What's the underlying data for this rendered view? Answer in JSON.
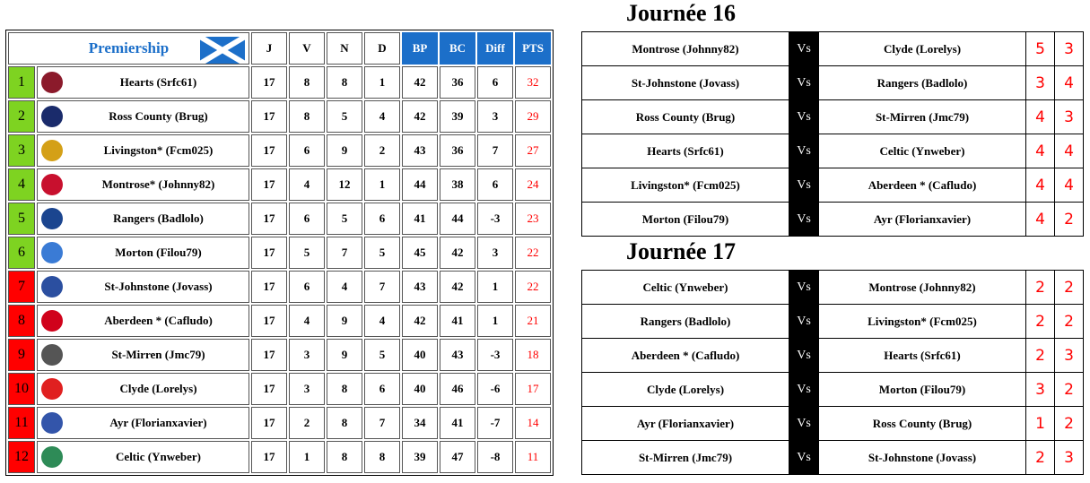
{
  "standings": {
    "title": "Premiership",
    "headers": [
      "J",
      "V",
      "N",
      "D",
      "BP",
      "BC",
      "Diff",
      "PTS"
    ],
    "rows": [
      {
        "rank": "1",
        "team": "Hearts (Srfc61)",
        "J": "17",
        "V": "8",
        "N": "8",
        "D": "1",
        "BP": "42",
        "BC": "36",
        "Diff": "6",
        "PTS": "32",
        "zone": "green",
        "logo": "#8b1a2b"
      },
      {
        "rank": "2",
        "team": "Ross County (Brug)",
        "J": "17",
        "V": "8",
        "N": "5",
        "D": "4",
        "BP": "42",
        "BC": "39",
        "Diff": "3",
        "PTS": "29",
        "zone": "green",
        "logo": "#1a2b6b"
      },
      {
        "rank": "3",
        "team": "Livingston* (Fcm025)",
        "J": "17",
        "V": "6",
        "N": "9",
        "D": "2",
        "BP": "43",
        "BC": "36",
        "Diff": "7",
        "PTS": "27",
        "zone": "green",
        "logo": "#d4a017"
      },
      {
        "rank": "4",
        "team": "Montrose* (Johnny82)",
        "J": "17",
        "V": "4",
        "N": "12",
        "D": "1",
        "BP": "44",
        "BC": "38",
        "Diff": "6",
        "PTS": "24",
        "zone": "green",
        "logo": "#c8102e"
      },
      {
        "rank": "5",
        "team": "Rangers (Badlolo)",
        "J": "17",
        "V": "6",
        "N": "5",
        "D": "6",
        "BP": "41",
        "BC": "44",
        "Diff": "-3",
        "PTS": "23",
        "zone": "green",
        "logo": "#1b458f"
      },
      {
        "rank": "6",
        "team": "Morton (Filou79)",
        "J": "17",
        "V": "5",
        "N": "7",
        "D": "5",
        "BP": "45",
        "BC": "42",
        "Diff": "3",
        "PTS": "22",
        "zone": "green",
        "logo": "#3a7bd5"
      },
      {
        "rank": "7",
        "team": "St-Johnstone (Jovass)",
        "J": "17",
        "V": "6",
        "N": "4",
        "D": "7",
        "BP": "43",
        "BC": "42",
        "Diff": "1",
        "PTS": "22",
        "zone": "red",
        "logo": "#2b4fa0"
      },
      {
        "rank": "8",
        "team": "Aberdeen * (Cafludo)",
        "J": "17",
        "V": "4",
        "N": "9",
        "D": "4",
        "BP": "42",
        "BC": "41",
        "Diff": "1",
        "PTS": "21",
        "zone": "red",
        "logo": "#d0021b"
      },
      {
        "rank": "9",
        "team": "St-Mirren (Jmc79)",
        "J": "17",
        "V": "3",
        "N": "9",
        "D": "5",
        "BP": "40",
        "BC": "43",
        "Diff": "-3",
        "PTS": "18",
        "zone": "red",
        "logo": "#555555"
      },
      {
        "rank": "10",
        "team": "Clyde (Lorelys)",
        "J": "17",
        "V": "3",
        "N": "8",
        "D": "6",
        "BP": "40",
        "BC": "46",
        "Diff": "-6",
        "PTS": "17",
        "zone": "red",
        "logo": "#e02020"
      },
      {
        "rank": "11",
        "team": "Ayr (Florianxavier)",
        "J": "17",
        "V": "2",
        "N": "8",
        "D": "7",
        "BP": "34",
        "BC": "41",
        "Diff": "-7",
        "PTS": "14",
        "zone": "red",
        "logo": "#3355aa"
      },
      {
        "rank": "12",
        "team": "Celtic (Ynweber)",
        "J": "17",
        "V": "1",
        "N": "8",
        "D": "8",
        "BP": "39",
        "BC": "47",
        "Diff": "-8",
        "PTS": "11",
        "zone": "red",
        "logo": "#2e8b57"
      }
    ]
  },
  "rounds": [
    {
      "title": "Journée 16",
      "vs": "Vs",
      "matches": [
        [
          "Montrose (Johnny82)",
          "Clyde (Lorelys)",
          "5",
          "3"
        ],
        [
          "St-Johnstone (Jovass)",
          "Rangers (Badlolo)",
          "3",
          "4"
        ],
        [
          "Ross County (Brug)",
          "St-Mirren (Jmc79)",
          "4",
          "3"
        ],
        [
          "Hearts (Srfc61)",
          "Celtic (Ynweber)",
          "4",
          "4"
        ],
        [
          "Livingston* (Fcm025)",
          "Aberdeen * (Cafludo)",
          "4",
          "4"
        ],
        [
          "Morton (Filou79)",
          "Ayr (Florianxavier)",
          "4",
          "2"
        ]
      ]
    },
    {
      "title": "Journée 17",
      "vs": "Vs",
      "matches": [
        [
          "Celtic (Ynweber)",
          "Montrose (Johnny82)",
          "2",
          "2"
        ],
        [
          "Rangers (Badlolo)",
          "Livingston* (Fcm025)",
          "2",
          "2"
        ],
        [
          "Aberdeen * (Cafludo)",
          "Hearts (Srfc61)",
          "2",
          "3"
        ],
        [
          "Clyde (Lorelys)",
          "Morton (Filou79)",
          "3",
          "2"
        ],
        [
          "Ayr (Florianxavier)",
          "Ross County (Brug)",
          "1",
          "2"
        ],
        [
          "St-Mirren (Jmc79)",
          "St-Johnstone (Jovass)",
          "2",
          "3"
        ]
      ]
    }
  ]
}
